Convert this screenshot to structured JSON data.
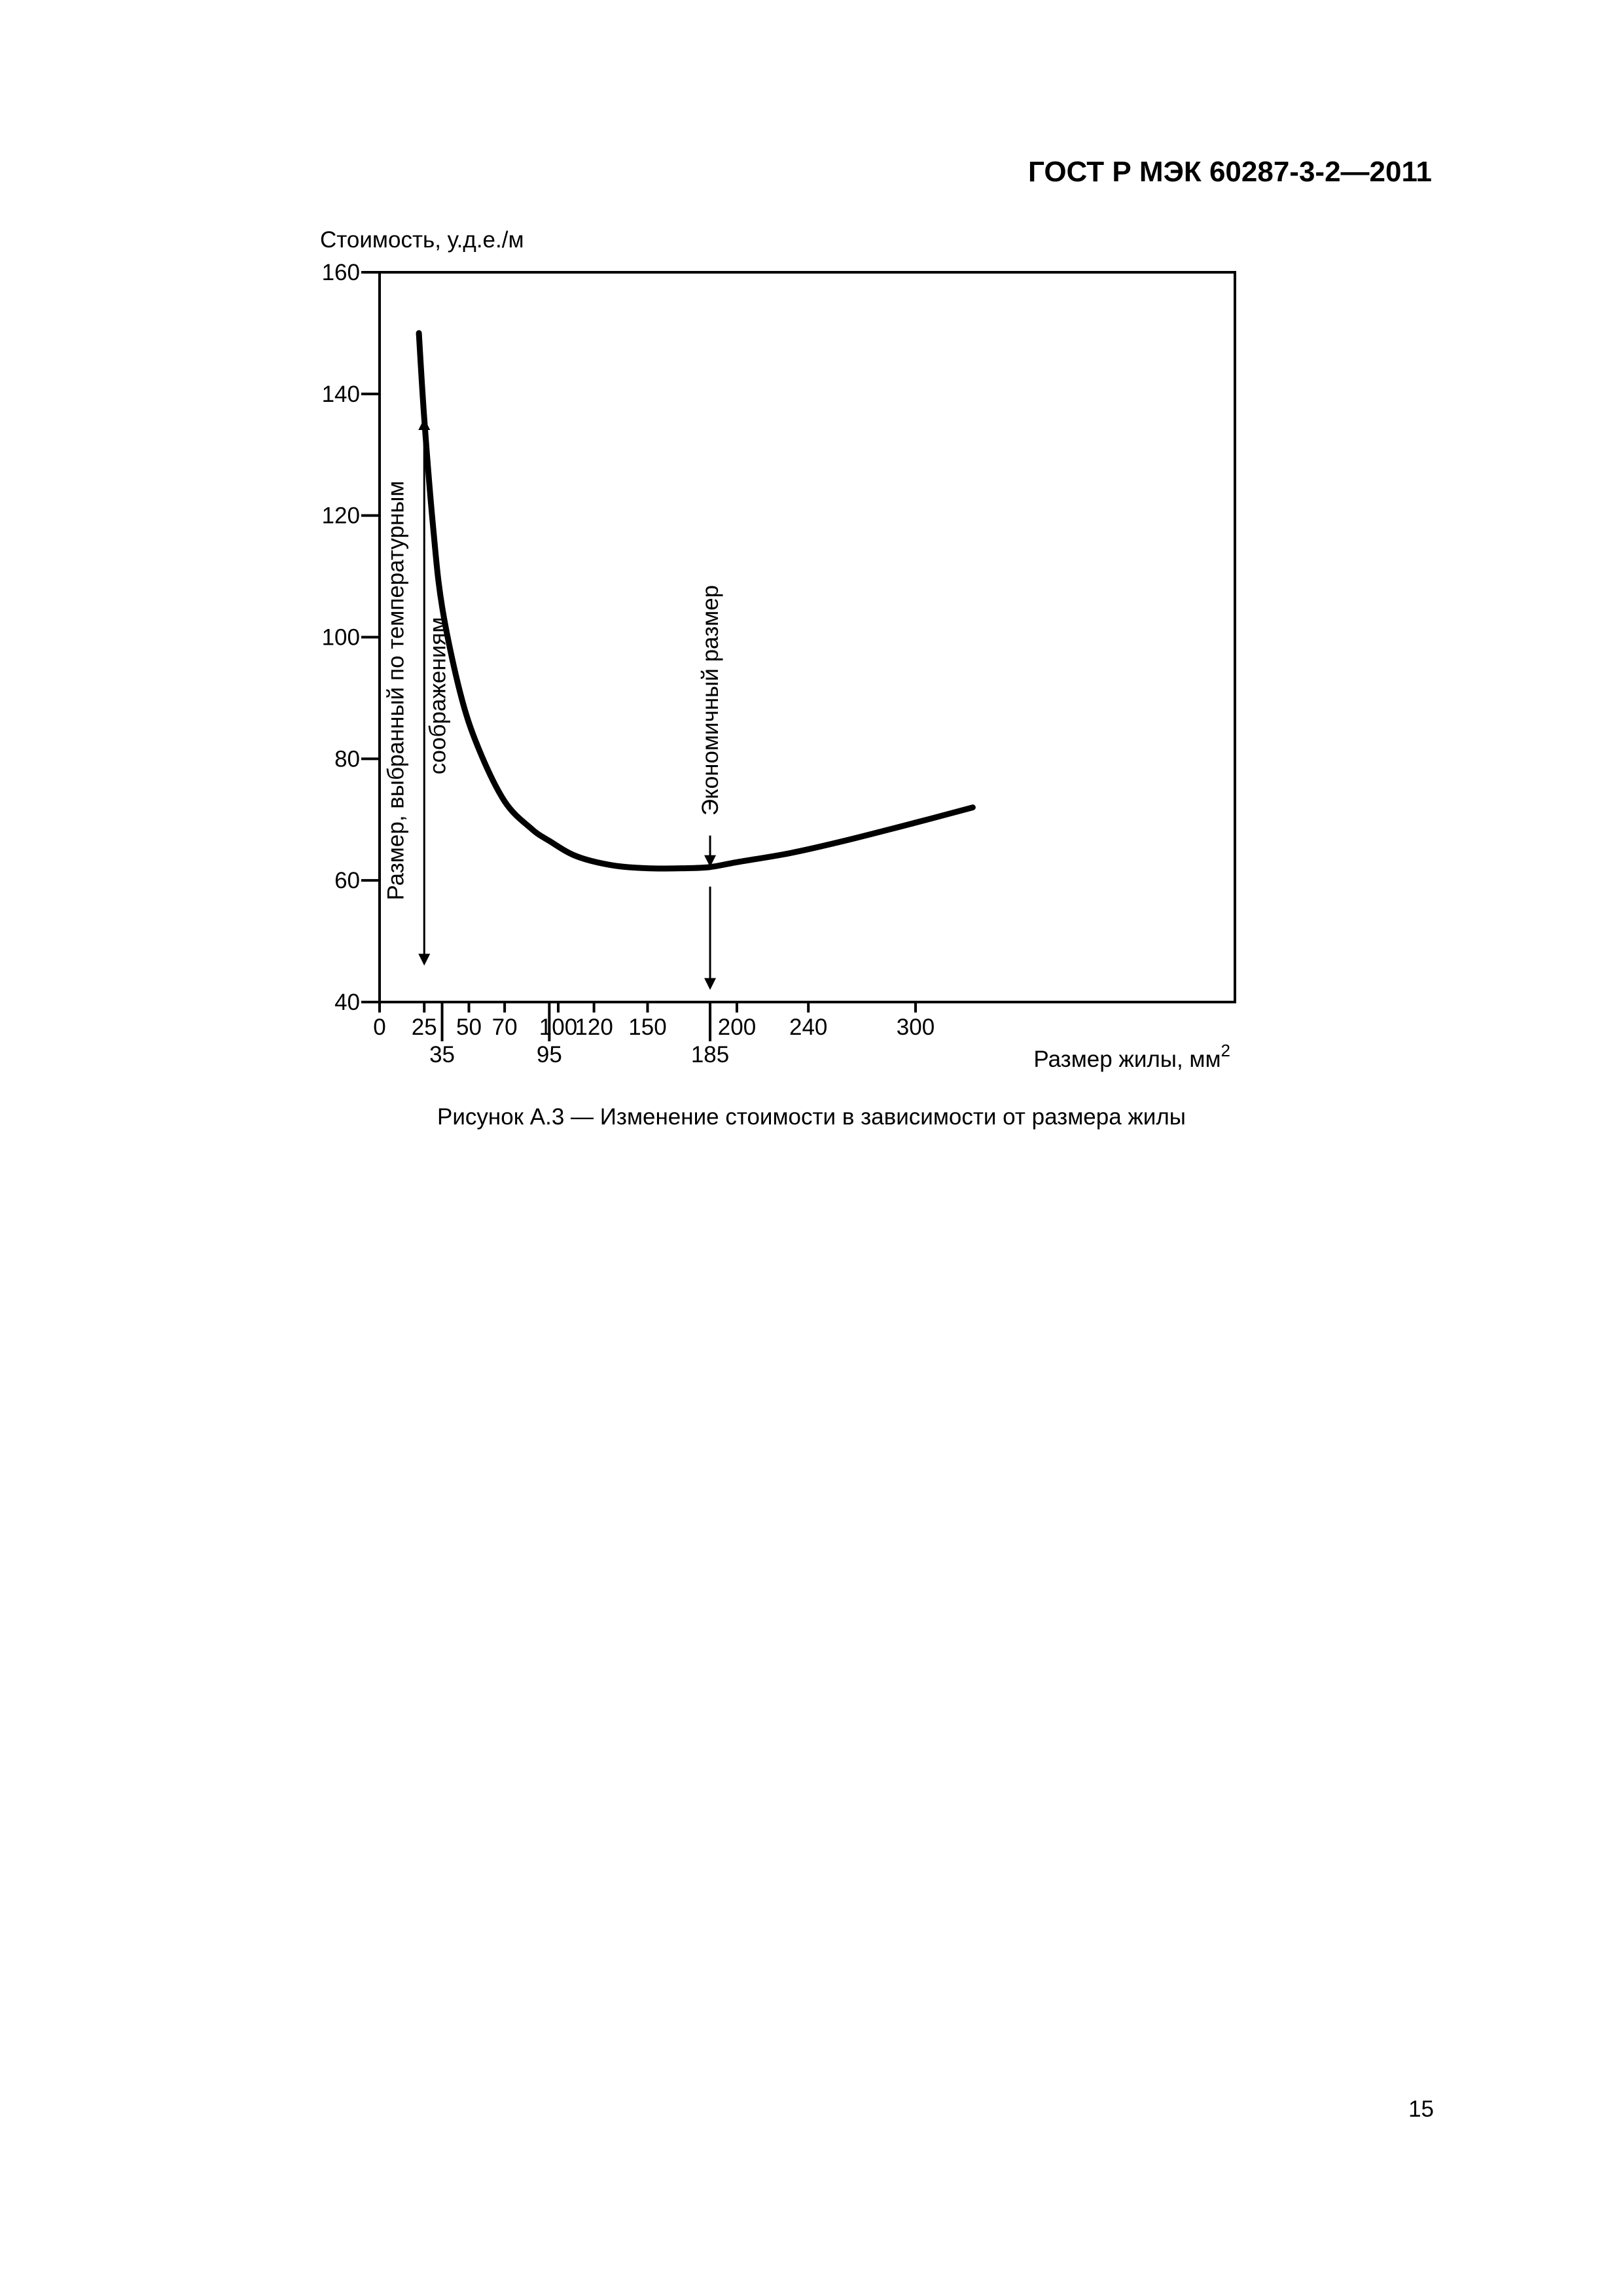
{
  "header": {
    "doc_code": "ГОСТ Р МЭК 60287-3-2—2011"
  },
  "figure": {
    "caption": "Рисунок А.3 — Изменение стоимости в зависимости от размера жилы"
  },
  "footer": {
    "page_number": "15"
  },
  "chart_data": {
    "type": "line",
    "ylabel": "Стоимость, у.д.е./м",
    "xlabel_text": "Размер жилы, мм",
    "xlabel_sup": "2",
    "xlim": [
      0,
      350
    ],
    "ylim": [
      40,
      160
    ],
    "grid": false,
    "y_ticks": [
      40,
      60,
      80,
      100,
      120,
      140,
      160
    ],
    "x_ticks_upper": [
      0,
      25,
      50,
      70,
      100,
      120,
      150,
      200,
      240,
      300
    ],
    "x_ticks_lower": [
      35,
      95,
      185
    ],
    "series": [
      {
        "name": "",
        "x": [
          22,
          25,
          30,
          35,
          45,
          55,
          70,
          85,
          95,
          110,
          130,
          150,
          170,
          185,
          200,
          230,
          260,
          300,
          332
        ],
        "y": [
          150,
          136,
          118,
          105,
          91,
          82,
          73,
          68.5,
          66.5,
          64,
          62.5,
          62,
          62,
          62.2,
          63,
          64.5,
          66.5,
          69.5,
          72
        ]
      }
    ],
    "annotations": [
      {
        "text": "Размер, выбранный по температурным",
        "x": 25,
        "arrow_from_y": 46,
        "arrow_to_y": 136
      },
      {
        "text": "соображениям",
        "x": 25
      },
      {
        "text": "Экономичный размер",
        "x": 185,
        "arrow_up_to_y": 62,
        "arrow_down_to_y": 42
      }
    ]
  }
}
